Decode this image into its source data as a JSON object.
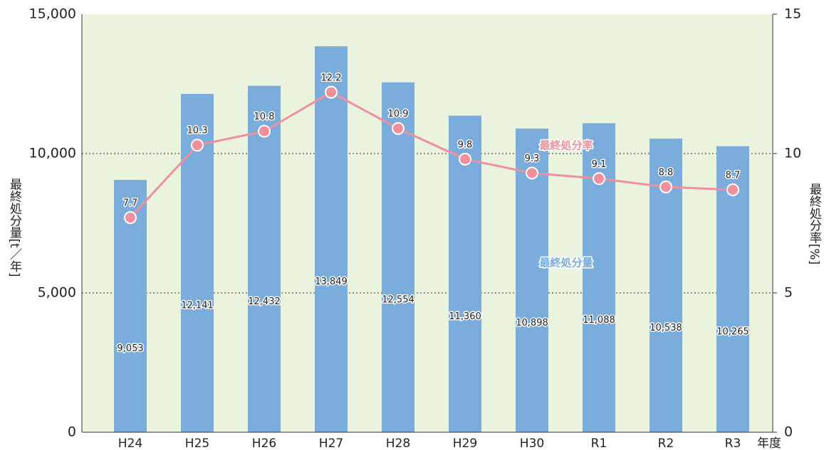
{
  "chart_data": {
    "type": "bar-line",
    "categories": [
      "H24",
      "H25",
      "H26",
      "H27",
      "H28",
      "H29",
      "H30",
      "R1",
      "R2",
      "R3"
    ],
    "x_label": "年度",
    "y_label": "最終処分量[t／年]",
    "y2_label": "最終処分率[%]",
    "series": [
      {
        "name": "最終処分量",
        "type": "bar",
        "color": "#7aacdc",
        "values": [
          9053,
          12141,
          12432,
          13849,
          12554,
          11360,
          10898,
          11088,
          10538,
          10265
        ],
        "value_labels": [
          "9,053",
          "12,141",
          "12,432",
          "13,849",
          "12,554",
          "11,360",
          "10,898",
          "11,088",
          "10,538",
          "10,265"
        ]
      },
      {
        "name": "最終処分率",
        "type": "line",
        "axis": "y2",
        "color": "#f0909c",
        "values": [
          7.7,
          10.3,
          10.8,
          12.2,
          10.9,
          9.8,
          9.3,
          9.1,
          8.8,
          8.7
        ]
      }
    ],
    "ylim": [
      0,
      15000
    ],
    "yticks": [
      0,
      {
        "value": 5000,
        "label": "5,000"
      },
      {
        "value": 10000,
        "label": "10,000"
      },
      {
        "value": 15000,
        "label": "15,000"
      }
    ],
    "y2lim": [
      0,
      15
    ],
    "y2ticks": [
      0,
      5,
      10,
      15
    ],
    "grid": true,
    "background": "#eaf3de"
  }
}
